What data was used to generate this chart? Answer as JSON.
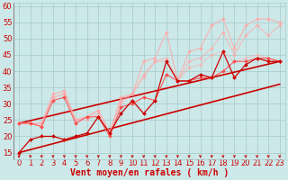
{
  "xlabel": "Vent moyen/en rafales ( km/h )",
  "xlim": [
    -0.5,
    23.5
  ],
  "ylim": [
    13,
    61
  ],
  "yticks": [
    15,
    20,
    25,
    30,
    35,
    40,
    45,
    50,
    55,
    60
  ],
  "xticks": [
    0,
    1,
    2,
    3,
    4,
    5,
    6,
    7,
    8,
    9,
    10,
    11,
    12,
    13,
    14,
    15,
    16,
    17,
    18,
    19,
    20,
    21,
    22,
    23
  ],
  "background_color": "#cce8e8",
  "grid_color": "#aacfcf",
  "series": [
    {
      "x": [
        0,
        1,
        2,
        3,
        4,
        5,
        6,
        7,
        8,
        9,
        10,
        11,
        12,
        13,
        14,
        15,
        16,
        17,
        18,
        19,
        20,
        21,
        22,
        23
      ],
      "y": [
        24,
        24,
        24,
        33,
        34,
        25,
        26,
        28,
        21,
        32,
        33,
        43,
        44,
        52,
        37,
        46,
        47,
        54,
        56,
        47,
        54,
        56,
        56,
        55
      ],
      "color": "#ffaaaa",
      "alpha": 0.85,
      "lw": 0.8,
      "marker": "D",
      "ms": 2.0
    },
    {
      "x": [
        0,
        1,
        2,
        3,
        4,
        5,
        6,
        7,
        8,
        9,
        10,
        11,
        12,
        13,
        14,
        15,
        16,
        17,
        18,
        19,
        20,
        21,
        22,
        23
      ],
      "y": [
        24,
        24,
        24,
        32,
        33,
        25,
        26,
        28,
        21,
        31,
        33,
        39,
        43,
        44,
        37,
        43,
        44,
        47,
        52,
        45,
        51,
        54,
        51,
        54
      ],
      "color": "#ffaaaa",
      "alpha": 0.7,
      "lw": 0.8,
      "marker": "D",
      "ms": 2.0
    },
    {
      "x": [
        0,
        1,
        2,
        3,
        4,
        5,
        6,
        7,
        8,
        9,
        10,
        11,
        12,
        13,
        14,
        15,
        16,
        17,
        18,
        19,
        20,
        21,
        22,
        23
      ],
      "y": [
        24,
        24,
        23,
        32,
        33,
        25,
        25,
        27,
        21,
        30,
        33,
        38,
        43,
        43,
        37,
        41,
        42,
        45,
        46,
        43,
        44,
        45,
        44,
        43
      ],
      "color": "#ffaaaa",
      "alpha": 0.55,
      "lw": 0.8,
      "marker": "D",
      "ms": 2.0
    },
    {
      "x": [
        0,
        1,
        2,
        3,
        4,
        5,
        6,
        7,
        8,
        9,
        10,
        11,
        12,
        13,
        14,
        15,
        16,
        17,
        18,
        19,
        20,
        21,
        22,
        23
      ],
      "y": [
        24,
        24,
        23,
        31,
        32,
        24,
        26,
        26,
        20,
        29,
        30,
        32,
        31,
        39,
        37,
        37,
        38,
        38,
        40,
        43,
        43,
        44,
        44,
        43
      ],
      "color": "#ff4444",
      "alpha": 0.85,
      "lw": 0.8,
      "marker": "D",
      "ms": 2.0
    },
    {
      "x": [
        0,
        1,
        2,
        3,
        4,
        5,
        6,
        7,
        8,
        9,
        10,
        11,
        12,
        13,
        14,
        15,
        16,
        17,
        18,
        19,
        20,
        21,
        22,
        23
      ],
      "y": [
        15,
        19,
        20,
        20,
        19,
        20,
        21,
        26,
        21,
        27,
        31,
        27,
        31,
        43,
        37,
        37,
        39,
        38,
        46,
        38,
        42,
        44,
        43,
        43
      ],
      "color": "#cc0000",
      "alpha": 1.0,
      "lw": 0.9,
      "marker": "D",
      "ms": 2.0
    },
    {
      "x": [
        0,
        23
      ],
      "y": [
        15,
        36
      ],
      "color": "#cc0000",
      "alpha": 1.0,
      "lw": 1.2,
      "marker": null,
      "ms": 0
    },
    {
      "x": [
        0,
        23
      ],
      "y": [
        24,
        43
      ],
      "color": "#cc0000",
      "alpha": 1.0,
      "lw": 1.2,
      "marker": null,
      "ms": 0
    }
  ],
  "arrow_color": "#cc0000",
  "xlabel_color": "#cc0000",
  "xlabel_fontsize": 7,
  "tick_fontsize": 6,
  "tick_color": "#cc0000",
  "ytick_color": "#cc0000"
}
